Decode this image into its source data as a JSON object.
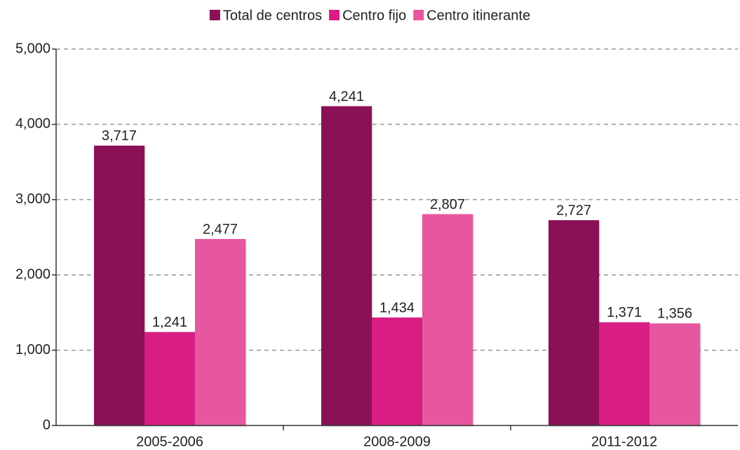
{
  "chart_data": {
    "type": "bar",
    "categories": [
      "2005-2006",
      "2008-2009",
      "2011-2012"
    ],
    "series": [
      {
        "name": "Total de centros",
        "color": "#8b1157",
        "values": [
          3717,
          4241,
          2727
        ],
        "value_labels": [
          "3,717",
          "4,241",
          "2,727"
        ]
      },
      {
        "name": "Centro fijo",
        "color": "#d81e84",
        "values": [
          1241,
          1434,
          1371
        ],
        "value_labels": [
          "1,241",
          "1,434",
          "1,371"
        ]
      },
      {
        "name": "Centro itinerante",
        "color": "#e7579f",
        "values": [
          2477,
          2807,
          1356
        ],
        "value_labels": [
          "2,477",
          "2,807",
          "1,356"
        ]
      }
    ],
    "ylim": [
      0,
      5000
    ],
    "yticks": [
      0,
      {
        "value": 1000,
        "label": "1,000"
      },
      {
        "value": 2000,
        "label": "2,000"
      },
      {
        "value": 3000,
        "label": "3,000"
      },
      {
        "value": 4000,
        "label": "4,000"
      },
      {
        "value": 5000,
        "label": "5,000"
      }
    ],
    "grid": true,
    "legend": "top"
  }
}
